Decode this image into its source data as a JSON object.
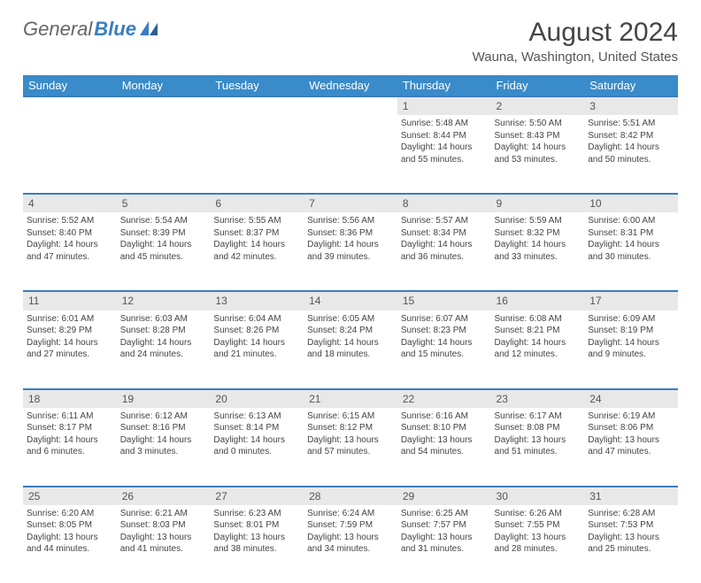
{
  "logo": {
    "word1": "General",
    "word2": "Blue"
  },
  "title": "August 2024",
  "location": "Wauna, Washington, United States",
  "colors": {
    "header_bg": "#3a8bc9",
    "header_text": "#ffffff",
    "accent_border": "#3a7ebf",
    "daynum_bg": "#e8e8e8",
    "body_text": "#444444",
    "page_bg": "#ffffff"
  },
  "dayHeaders": [
    "Sunday",
    "Monday",
    "Tuesday",
    "Wednesday",
    "Thursday",
    "Friday",
    "Saturday"
  ],
  "weeks": [
    [
      null,
      null,
      null,
      null,
      {
        "n": "1",
        "sr": "Sunrise: 5:48 AM",
        "ss": "Sunset: 8:44 PM",
        "dl1": "Daylight: 14 hours",
        "dl2": "and 55 minutes."
      },
      {
        "n": "2",
        "sr": "Sunrise: 5:50 AM",
        "ss": "Sunset: 8:43 PM",
        "dl1": "Daylight: 14 hours",
        "dl2": "and 53 minutes."
      },
      {
        "n": "3",
        "sr": "Sunrise: 5:51 AM",
        "ss": "Sunset: 8:42 PM",
        "dl1": "Daylight: 14 hours",
        "dl2": "and 50 minutes."
      }
    ],
    [
      {
        "n": "4",
        "sr": "Sunrise: 5:52 AM",
        "ss": "Sunset: 8:40 PM",
        "dl1": "Daylight: 14 hours",
        "dl2": "and 47 minutes."
      },
      {
        "n": "5",
        "sr": "Sunrise: 5:54 AM",
        "ss": "Sunset: 8:39 PM",
        "dl1": "Daylight: 14 hours",
        "dl2": "and 45 minutes."
      },
      {
        "n": "6",
        "sr": "Sunrise: 5:55 AM",
        "ss": "Sunset: 8:37 PM",
        "dl1": "Daylight: 14 hours",
        "dl2": "and 42 minutes."
      },
      {
        "n": "7",
        "sr": "Sunrise: 5:56 AM",
        "ss": "Sunset: 8:36 PM",
        "dl1": "Daylight: 14 hours",
        "dl2": "and 39 minutes."
      },
      {
        "n": "8",
        "sr": "Sunrise: 5:57 AM",
        "ss": "Sunset: 8:34 PM",
        "dl1": "Daylight: 14 hours",
        "dl2": "and 36 minutes."
      },
      {
        "n": "9",
        "sr": "Sunrise: 5:59 AM",
        "ss": "Sunset: 8:32 PM",
        "dl1": "Daylight: 14 hours",
        "dl2": "and 33 minutes."
      },
      {
        "n": "10",
        "sr": "Sunrise: 6:00 AM",
        "ss": "Sunset: 8:31 PM",
        "dl1": "Daylight: 14 hours",
        "dl2": "and 30 minutes."
      }
    ],
    [
      {
        "n": "11",
        "sr": "Sunrise: 6:01 AM",
        "ss": "Sunset: 8:29 PM",
        "dl1": "Daylight: 14 hours",
        "dl2": "and 27 minutes."
      },
      {
        "n": "12",
        "sr": "Sunrise: 6:03 AM",
        "ss": "Sunset: 8:28 PM",
        "dl1": "Daylight: 14 hours",
        "dl2": "and 24 minutes."
      },
      {
        "n": "13",
        "sr": "Sunrise: 6:04 AM",
        "ss": "Sunset: 8:26 PM",
        "dl1": "Daylight: 14 hours",
        "dl2": "and 21 minutes."
      },
      {
        "n": "14",
        "sr": "Sunrise: 6:05 AM",
        "ss": "Sunset: 8:24 PM",
        "dl1": "Daylight: 14 hours",
        "dl2": "and 18 minutes."
      },
      {
        "n": "15",
        "sr": "Sunrise: 6:07 AM",
        "ss": "Sunset: 8:23 PM",
        "dl1": "Daylight: 14 hours",
        "dl2": "and 15 minutes."
      },
      {
        "n": "16",
        "sr": "Sunrise: 6:08 AM",
        "ss": "Sunset: 8:21 PM",
        "dl1": "Daylight: 14 hours",
        "dl2": "and 12 minutes."
      },
      {
        "n": "17",
        "sr": "Sunrise: 6:09 AM",
        "ss": "Sunset: 8:19 PM",
        "dl1": "Daylight: 14 hours",
        "dl2": "and 9 minutes."
      }
    ],
    [
      {
        "n": "18",
        "sr": "Sunrise: 6:11 AM",
        "ss": "Sunset: 8:17 PM",
        "dl1": "Daylight: 14 hours",
        "dl2": "and 6 minutes."
      },
      {
        "n": "19",
        "sr": "Sunrise: 6:12 AM",
        "ss": "Sunset: 8:16 PM",
        "dl1": "Daylight: 14 hours",
        "dl2": "and 3 minutes."
      },
      {
        "n": "20",
        "sr": "Sunrise: 6:13 AM",
        "ss": "Sunset: 8:14 PM",
        "dl1": "Daylight: 14 hours",
        "dl2": "and 0 minutes."
      },
      {
        "n": "21",
        "sr": "Sunrise: 6:15 AM",
        "ss": "Sunset: 8:12 PM",
        "dl1": "Daylight: 13 hours",
        "dl2": "and 57 minutes."
      },
      {
        "n": "22",
        "sr": "Sunrise: 6:16 AM",
        "ss": "Sunset: 8:10 PM",
        "dl1": "Daylight: 13 hours",
        "dl2": "and 54 minutes."
      },
      {
        "n": "23",
        "sr": "Sunrise: 6:17 AM",
        "ss": "Sunset: 8:08 PM",
        "dl1": "Daylight: 13 hours",
        "dl2": "and 51 minutes."
      },
      {
        "n": "24",
        "sr": "Sunrise: 6:19 AM",
        "ss": "Sunset: 8:06 PM",
        "dl1": "Daylight: 13 hours",
        "dl2": "and 47 minutes."
      }
    ],
    [
      {
        "n": "25",
        "sr": "Sunrise: 6:20 AM",
        "ss": "Sunset: 8:05 PM",
        "dl1": "Daylight: 13 hours",
        "dl2": "and 44 minutes."
      },
      {
        "n": "26",
        "sr": "Sunrise: 6:21 AM",
        "ss": "Sunset: 8:03 PM",
        "dl1": "Daylight: 13 hours",
        "dl2": "and 41 minutes."
      },
      {
        "n": "27",
        "sr": "Sunrise: 6:23 AM",
        "ss": "Sunset: 8:01 PM",
        "dl1": "Daylight: 13 hours",
        "dl2": "and 38 minutes."
      },
      {
        "n": "28",
        "sr": "Sunrise: 6:24 AM",
        "ss": "Sunset: 7:59 PM",
        "dl1": "Daylight: 13 hours",
        "dl2": "and 34 minutes."
      },
      {
        "n": "29",
        "sr": "Sunrise: 6:25 AM",
        "ss": "Sunset: 7:57 PM",
        "dl1": "Daylight: 13 hours",
        "dl2": "and 31 minutes."
      },
      {
        "n": "30",
        "sr": "Sunrise: 6:26 AM",
        "ss": "Sunset: 7:55 PM",
        "dl1": "Daylight: 13 hours",
        "dl2": "and 28 minutes."
      },
      {
        "n": "31",
        "sr": "Sunrise: 6:28 AM",
        "ss": "Sunset: 7:53 PM",
        "dl1": "Daylight: 13 hours",
        "dl2": "and 25 minutes."
      }
    ]
  ]
}
